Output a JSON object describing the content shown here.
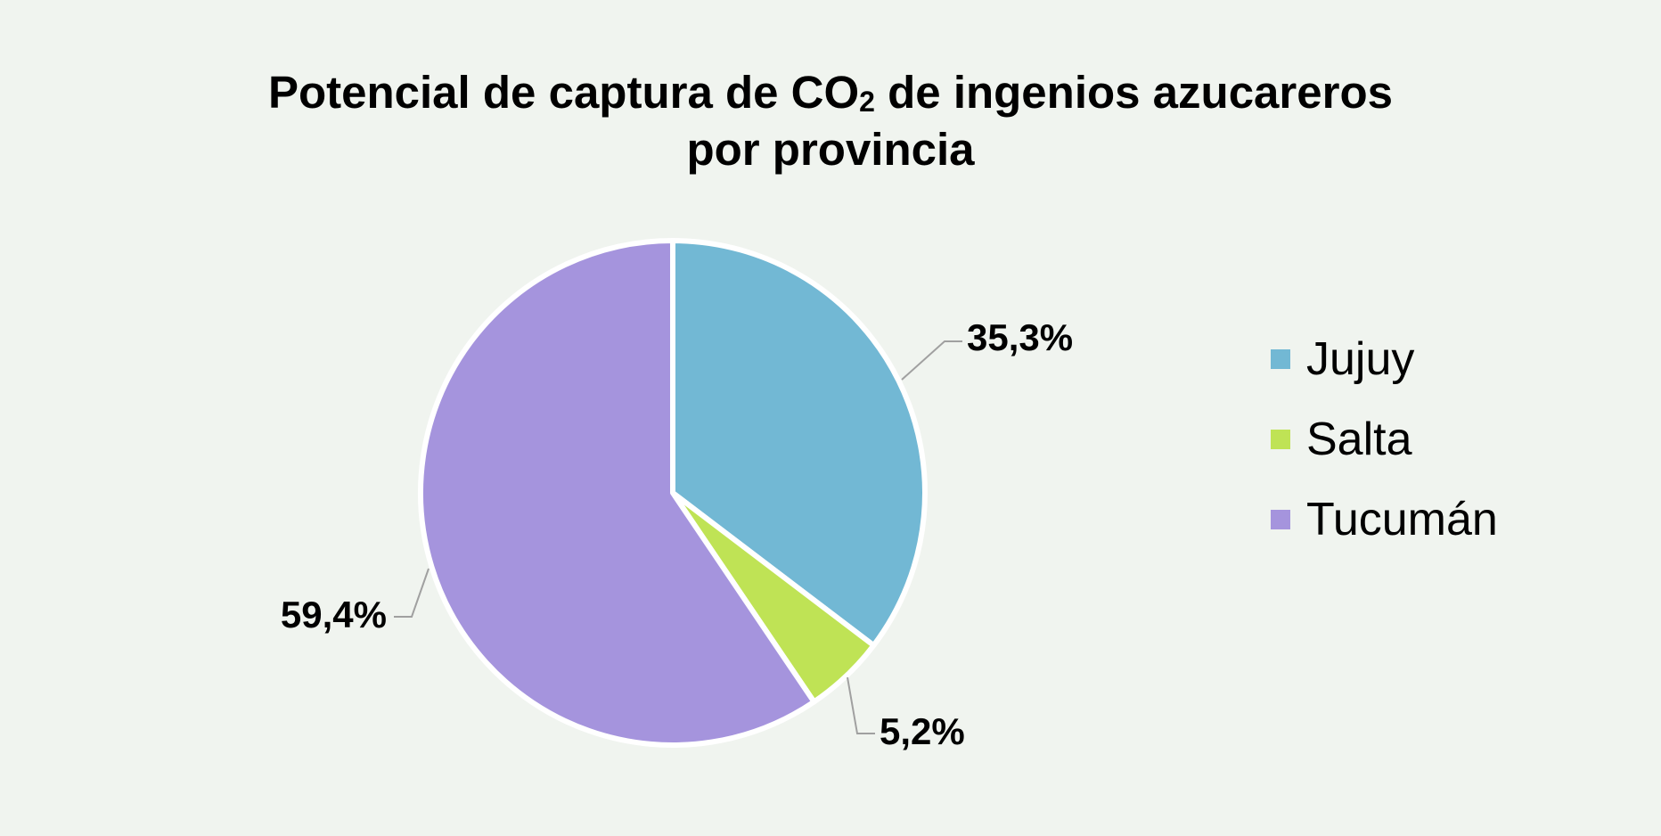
{
  "chart_data": {
    "type": "pie",
    "title_parts": [
      "Potencial de captura de CO",
      "2",
      " de ingenios azucareros",
      "por provincia"
    ],
    "categories": [
      "Jujuy",
      "Salta",
      "Tucumán"
    ],
    "values": [
      35.3,
      5.2,
      59.4
    ],
    "data_labels": [
      "35,3%",
      "5,2%",
      "59,4%"
    ],
    "colors": [
      "#72b8d4",
      "#bfe355",
      "#a594dd"
    ],
    "legend_position": "right",
    "start_angle": "12 o'clock, clockwise"
  }
}
